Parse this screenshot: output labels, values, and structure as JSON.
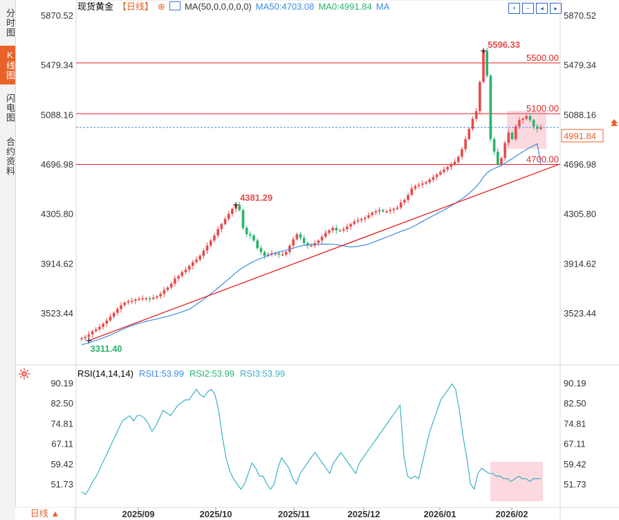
{
  "side_tabs": [
    {
      "label": "分时图",
      "active": false
    },
    {
      "label": "K线图",
      "active": true
    },
    {
      "label": "闪电图",
      "active": false
    },
    {
      "label": "合约资料",
      "active": false
    }
  ],
  "header": {
    "title": "现货黄金",
    "period": "【日线】",
    "add_icon": "⊕",
    "ma_label": "MA(50,0,0,0,0,0)",
    "ma50": "MA50:4703.08",
    "ma0": "MA0:4991.84",
    "ma": "MA"
  },
  "toolbar": [
    "zoom-in-icon",
    "zoom-out-icon",
    "play-prev-icon",
    "play-next-icon"
  ],
  "price_panel": {
    "y_ticks": [
      "5870.52",
      "5479.34",
      "5088.16",
      "4696.98",
      "4305.80",
      "3914.62",
      "3523.44"
    ],
    "current_price": "4991.84",
    "annotations": {
      "high": "5596.33",
      "mid_high": "4381.29",
      "low": "3311.40",
      "line_5500": "5500.00",
      "line_5100": "5100.00",
      "line_4700": "4700.00"
    }
  },
  "rsi_panel": {
    "name": "RSI(14,14,14)",
    "rsi1": "RSI1:53.99",
    "rsi2": "RSI2:53.99",
    "rsi3": "RSI3:53.99",
    "y_ticks": [
      "90.19",
      "82.50",
      "74.81",
      "67.11",
      "59.42",
      "51.73"
    ]
  },
  "x_ticks": [
    "2025/09",
    "2025/10",
    "2025/11",
    "2025/12",
    "2026/01",
    "2026/02"
  ],
  "period_button": "日线 ▲",
  "colors": {
    "up": "#e84a4a",
    "down": "#2ab36e",
    "ma50": "#3b8de0",
    "hline": "#e02020",
    "trend": "#e02020",
    "rsi": "#3bb0c8",
    "accent": "#e8632a"
  },
  "chart_data": [
    {
      "type": "candlestick",
      "title": "现货黄金 日线",
      "x": [
        "2025/09",
        "2025/10",
        "2025/11",
        "2025/12",
        "2026/01",
        "2026/02"
      ],
      "ylim": [
        3420,
        5900
      ],
      "key_levels": [
        5500.0,
        5100.0,
        4700.0
      ],
      "current_price": 4991.84,
      "ma50_last": 4703.08,
      "anchor_points": [
        {
          "label": "low",
          "value": 3311.4
        },
        {
          "label": "peak",
          "value": 4381.29
        },
        {
          "label": "high",
          "value": 5596.33
        }
      ],
      "close_series": [
        3330,
        3340,
        3360,
        3385,
        3400,
        3420,
        3445,
        3470,
        3500,
        3530,
        3560,
        3590,
        3610,
        3620,
        3625,
        3635,
        3640,
        3645,
        3645,
        3640,
        3650,
        3660,
        3680,
        3710,
        3730,
        3760,
        3800,
        3820,
        3850,
        3870,
        3900,
        3930,
        3950,
        3980,
        4020,
        4060,
        4100,
        4140,
        4190,
        4230,
        4270,
        4310,
        4350,
        4381,
        4340,
        4200,
        4150,
        4140,
        4100,
        4040,
        4010,
        3980,
        3990,
        4000,
        4000,
        3990,
        3990,
        4010,
        4060,
        4110,
        4150,
        4120,
        4080,
        4060,
        4060,
        4080,
        4100,
        4130,
        4160,
        4180,
        4200,
        4180,
        4180,
        4190,
        4210,
        4230,
        4250,
        4260,
        4270,
        4280,
        4300,
        4320,
        4330,
        4340,
        4330,
        4330,
        4340,
        4350,
        4360,
        4400,
        4420,
        4460,
        4510,
        4530,
        4540,
        4550,
        4560,
        4580,
        4600,
        4620,
        4640,
        4660,
        4680,
        4700,
        4720,
        4760,
        4820,
        4900,
        4980,
        5060,
        5120,
        5350,
        5596,
        5400,
        4900,
        4800,
        4700,
        4750,
        4870,
        4950,
        4900,
        5000,
        5050,
        5060,
        5080,
        5050,
        5000,
        4980,
        4991
      ]
    },
    {
      "type": "line",
      "title": "RSI(14,14,14)",
      "ylim": [
        47,
        92
      ],
      "y_ticks": [
        90.19,
        82.5,
        74.81,
        67.11,
        59.42,
        51.73
      ],
      "series": [
        {
          "name": "RSI1",
          "last": 53.99,
          "values": [
            49,
            48,
            50,
            53,
            55,
            58,
            61,
            64,
            67,
            70,
            73,
            76,
            77,
            78,
            76,
            78,
            78,
            77,
            75,
            72,
            74,
            77,
            80,
            79,
            78,
            80,
            82,
            83,
            84,
            84,
            86,
            88,
            86,
            85,
            87,
            88,
            86,
            80,
            70,
            62,
            57,
            54,
            52,
            50,
            52,
            56,
            60,
            58,
            55,
            55,
            52,
            50,
            52,
            58,
            62,
            60,
            58,
            54,
            52,
            56,
            58,
            60,
            62,
            64,
            62,
            60,
            58,
            56,
            60,
            62,
            64,
            62,
            60,
            58,
            56,
            60,
            62,
            64,
            66,
            68,
            70,
            72,
            74,
            76,
            78,
            80,
            82,
            63,
            55,
            54,
            55,
            54,
            60,
            66,
            72,
            76,
            80,
            84,
            86,
            88,
            90,
            88,
            80,
            70,
            62,
            52,
            50,
            56,
            58,
            57,
            56,
            56,
            55,
            55,
            54,
            54,
            53,
            54,
            55,
            54,
            54,
            53,
            54,
            54,
            54
          ]
        }
      ]
    }
  ]
}
